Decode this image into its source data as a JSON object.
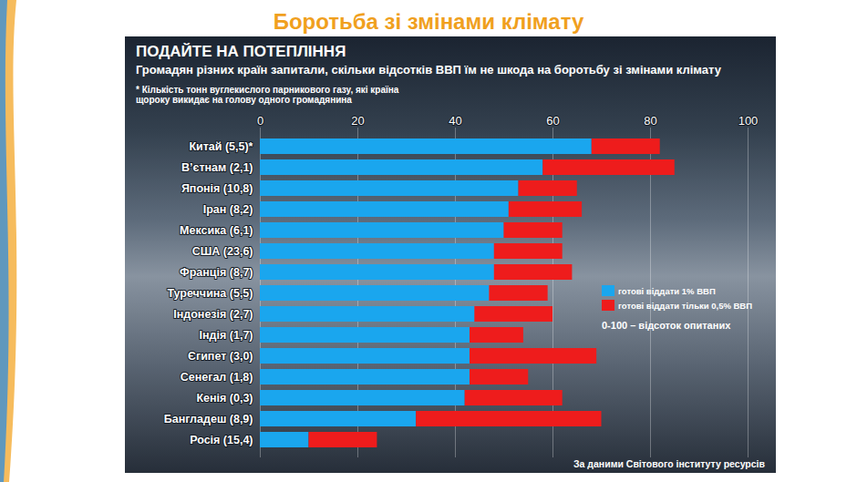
{
  "chart_data": {
    "type": "bar",
    "orientation": "horizontal",
    "stacked": true,
    "header": "Боротьба зі змінами клімату",
    "title": "ПОДАЙТЕ НА ПОТЕПЛІННЯ",
    "subtitle": "Громадян різних країн запитали, скільки відсотків ВВП їм не шкода на боротьбу зі змінами клімату",
    "footnote": "* Кількість тонн вуглекислого парникового газу, які країна щороку викидає на голову одного громадянина",
    "annotation": "0-100 – відсоток опитаних",
    "source": "За даними Світового інституту ресурсів",
    "categories": [
      "Китай (5,5)*",
      "В’єтнам (2,1)",
      "Японія (10,8)",
      "Іран (8,2)",
      "Мексика (6,1)",
      "США (23,6)",
      "Франція (8,7)",
      "Туреччина (5,5)",
      "Індонезія (2,7)",
      "Індія (1,7)",
      "Єгипет (3,0)",
      "Сенегал (1,8)",
      "Кенія (0,3)",
      "Бангладеш (8,9)",
      "Росія (15,4)"
    ],
    "series": [
      {
        "name": "готові віддати 1% ВВП",
        "color": "#1aa6ee",
        "values": [
          68,
          58,
          53,
          51,
          50,
          48,
          48,
          47,
          44,
          43,
          43,
          43,
          42,
          32,
          10
        ]
      },
      {
        "name": "готові віддати тільки 0,5% ВВП",
        "color": "#ee1c1c",
        "values": [
          14,
          27,
          12,
          15,
          12,
          14,
          16,
          12,
          16,
          11,
          26,
          12,
          20,
          38,
          14
        ]
      }
    ],
    "xlim": [
      0,
      100
    ],
    "xticks": [
      0,
      20,
      40,
      60,
      80,
      100
    ],
    "grid": true,
    "legend": "right"
  }
}
